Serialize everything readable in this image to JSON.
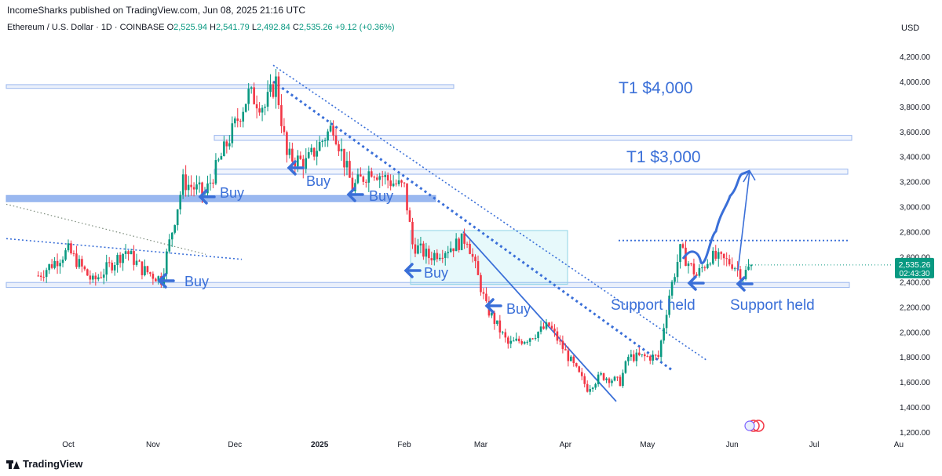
{
  "header": {
    "publisher": "IncomeSharks published on TradingView.com, Jun 08, 2025 21:16 UTC"
  },
  "legend": {
    "symbol": "Ethereum / U.S. Dollar · 1D · COINBASE",
    "open_label": "O",
    "open": "2,525.94",
    "high_label": "H",
    "high": "2,541.79",
    "low_label": "L",
    "low": "2,492.84",
    "close_label": "C",
    "close": "2,535.26",
    "change": "+9.12 (+0.36%)"
  },
  "currency": "USD",
  "price_tag": {
    "price": "2,535.26",
    "countdown": "02:43:30",
    "color": "#089981"
  },
  "footer": {
    "brand": "TradingView"
  },
  "colors": {
    "up": "#089981",
    "down": "#f23645",
    "annotation": "#3a6fd8",
    "zone": "#5b8de0"
  },
  "chart_data": {
    "type": "candlestick",
    "interval": "1D",
    "ylim": [
      1200,
      4300
    ],
    "y_ticks": [
      "4,200.00",
      "4,000.00",
      "3,800.00",
      "3,600.00",
      "3,400.00",
      "3,200.00",
      "3,000.00",
      "2,800.00",
      "2,600.00",
      "2,400.00",
      "2,200.00",
      "2,000.00",
      "1,800.00",
      "1,600.00",
      "1,400.00",
      "1,200.00"
    ],
    "x_ticks": [
      "Oct",
      "Nov",
      "Dec",
      "2025",
      "Feb",
      "Mar",
      "Apr",
      "May",
      "Jun",
      "Jul",
      "Au"
    ],
    "close_path": [
      [
        "2024-09-20",
        2450
      ],
      [
        "2024-10-01",
        2650
      ],
      [
        "2024-10-10",
        2400
      ],
      [
        "2024-10-22",
        2650
      ],
      [
        "2024-10-28",
        2500
      ],
      [
        "2024-11-04",
        2420
      ],
      [
        "2024-11-12",
        3200
      ],
      [
        "2024-11-20",
        3100
      ],
      [
        "2024-11-26",
        3400
      ],
      [
        "2024-12-01",
        3650
      ],
      [
        "2024-12-06",
        3900
      ],
      [
        "2024-12-12",
        3800
      ],
      [
        "2024-12-16",
        4000
      ],
      [
        "2024-12-20",
        3400
      ],
      [
        "2024-12-27",
        3350
      ],
      [
        "2025-01-06",
        3650
      ],
      [
        "2025-01-13",
        3150
      ],
      [
        "2025-01-20",
        3300
      ],
      [
        "2025-01-27",
        3200
      ],
      [
        "2025-02-01",
        3150
      ],
      [
        "2025-02-04",
        2700
      ],
      [
        "2025-02-10",
        2600
      ],
      [
        "2025-02-20",
        2700
      ],
      [
        "2025-02-24",
        2750
      ],
      [
        "2025-03-03",
        2200
      ],
      [
        "2025-03-11",
        1900
      ],
      [
        "2025-03-18",
        1950
      ],
      [
        "2025-03-26",
        2050
      ],
      [
        "2025-04-02",
        1800
      ],
      [
        "2025-04-09",
        1550
      ],
      [
        "2025-04-14",
        1650
      ],
      [
        "2025-04-21",
        1600
      ],
      [
        "2025-04-24",
        1800
      ],
      [
        "2025-05-05",
        1800
      ],
      [
        "2025-05-09",
        2300
      ],
      [
        "2025-05-13",
        2650
      ],
      [
        "2025-05-19",
        2450
      ],
      [
        "2025-05-24",
        2600
      ],
      [
        "2025-06-01",
        2550
      ],
      [
        "2025-06-05",
        2450
      ],
      [
        "2025-06-08",
        2535.26
      ]
    ],
    "last_ohlc": {
      "open": 2525.94,
      "high": 2541.79,
      "low": 2492.84,
      "close": 2535.26
    },
    "levels": [
      {
        "name": "zone-4000",
        "price": 3960
      },
      {
        "name": "zone-3600",
        "price": 3550
      },
      {
        "name": "zone-3300",
        "price": 3280
      },
      {
        "name": "zone-3050",
        "price": 3065
      },
      {
        "name": "zone-2370",
        "price": 2370
      }
    ],
    "dotted_resistance": 2730
  },
  "annotations": {
    "t1_4000": "T1 $4,000",
    "t1_3000": "T1 $3,000",
    "buy": "Buy",
    "support_held": "Support held"
  }
}
